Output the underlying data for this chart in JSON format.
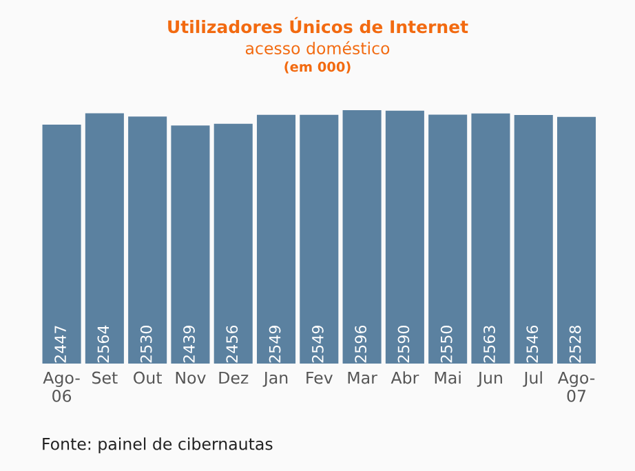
{
  "chart_data": {
    "type": "bar",
    "title": "Utilizadores Únicos de Internet",
    "subtitle": "acesso doméstico",
    "annotations": [
      "(em 000)",
      "Fonte: painel de cibernautas"
    ],
    "categories": [
      "Ago-\n06",
      "Set",
      "Out",
      "Nov",
      "Dez",
      "Jan",
      "Fev",
      "Mar",
      "Abr",
      "Mai",
      "Jun",
      "Jul",
      "Ago-\n07"
    ],
    "values": [
      2447,
      2564,
      2530,
      2439,
      2456,
      2549,
      2549,
      2596,
      2590,
      2550,
      2563,
      2546,
      2528
    ],
    "color": "#5b81a0",
    "data_labels": true,
    "grid": false,
    "legend": false
  }
}
